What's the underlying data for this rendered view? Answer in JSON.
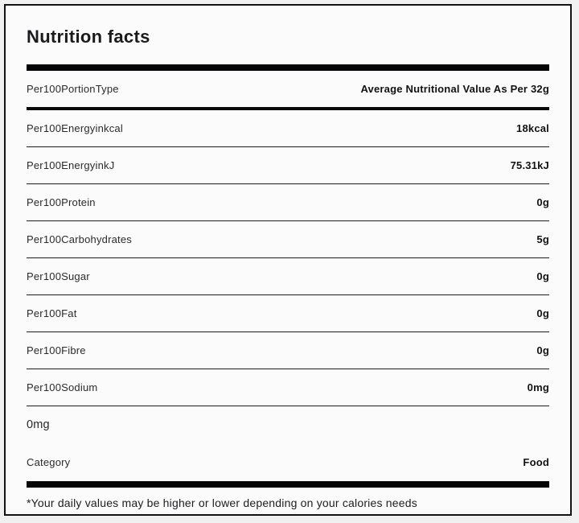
{
  "title": "Nutrition facts",
  "table": {
    "header": {
      "label": "Per100PortionType",
      "value": "Average Nutritional Value As Per 32g"
    },
    "rows": [
      {
        "label": "Per100Energyinkcal",
        "value": "18kcal"
      },
      {
        "label": "Per100EnergyinkJ",
        "value": "75.31kJ"
      },
      {
        "label": "Per100Protein",
        "value": "0g"
      },
      {
        "label": "Per100Carbohydrates",
        "value": "5g"
      },
      {
        "label": "Per100Sugar",
        "value": "0g"
      },
      {
        "label": "Per100Fat",
        "value": "0g"
      },
      {
        "label": "Per100Fibre",
        "value": "0g"
      },
      {
        "label": "Per100Sodium",
        "value": "0mg"
      }
    ],
    "extra_row": {
      "label": "0mg"
    },
    "category_row": {
      "label": "Category",
      "value": "Food"
    }
  },
  "footnote": "*Your daily values may be higher or lower depending on your calories needs",
  "colors": {
    "background": "#fbfbfb",
    "page_background": "#f1f1f2",
    "border": "#131316",
    "bar": "#050507",
    "divider": "#1c1c1e",
    "text": "#1b1b1d"
  }
}
